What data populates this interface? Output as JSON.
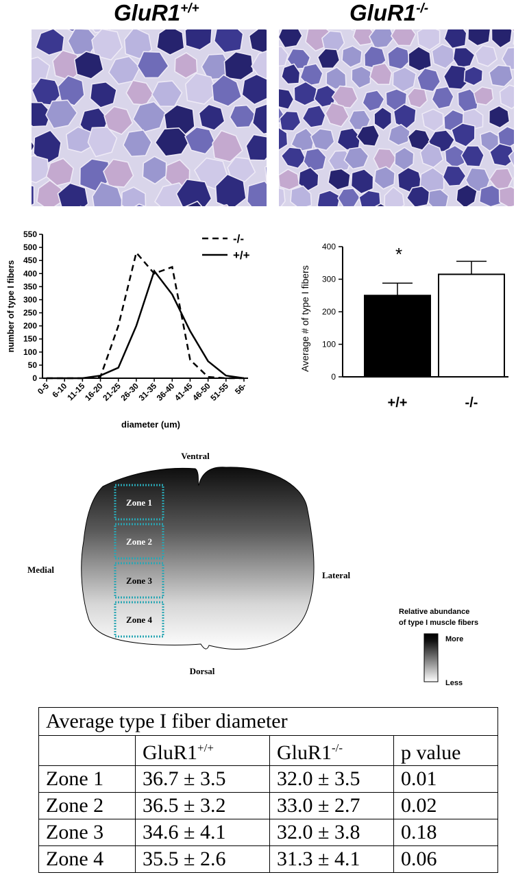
{
  "figure": {
    "panel_a": {
      "left_title": {
        "base": "GluR1",
        "sup": "+/+"
      },
      "right_title": {
        "base": "GluR1",
        "sup": "-/-"
      }
    },
    "line_chart": {
      "chart_data": {
        "type": "line",
        "categories": [
          "0-5",
          "6-10",
          "11-15",
          "16-20",
          "21-25",
          "26-30",
          "31-35",
          "36-40",
          "41-45",
          "46-50",
          "51-55",
          "56-"
        ],
        "series": [
          {
            "name": "-/-",
            "values": [
              0,
              0,
              0,
              5,
              200,
              480,
              400,
              425,
              70,
              5,
              0,
              0
            ]
          },
          {
            "name": "+/+",
            "values": [
              0,
              0,
              0,
              10,
              40,
              200,
              410,
              320,
              180,
              65,
              10,
              0
            ]
          }
        ],
        "xlabel": "diameter (um)",
        "ylabel": "number of type I fibers",
        "ylim": [
          0,
          550
        ],
        "yticks": [
          "0",
          "50",
          "100",
          "150",
          "200",
          "250",
          "300",
          "350",
          "400",
          "450",
          "500",
          "550"
        ],
        "legend_position": "top-right"
      }
    },
    "bar_chart": {
      "chart_data": {
        "type": "bar",
        "categories": [
          "+/+",
          "-/-"
        ],
        "values": [
          250,
          315
        ],
        "errors": [
          38,
          40
        ],
        "colors": [
          "#000000",
          "#ffffff"
        ],
        "ylabel": "Average # of type I fibers",
        "ylim": [
          0,
          400
        ],
        "yticks": [
          "0",
          "100",
          "200",
          "300",
          "400"
        ],
        "annotation": "*"
      }
    },
    "diagram": {
      "orientation": {
        "top": "Ventral",
        "bottom": "Dorsal",
        "left": "Medial",
        "right": "Lateral"
      },
      "zones": [
        "Zone 1",
        "Zone 2",
        "Zone 3",
        "Zone 4"
      ],
      "legend": {
        "title_line1": "Relative abundance",
        "title_line2": "of type I muscle fibers",
        "high": "More",
        "low": "Less"
      }
    },
    "table": {
      "caption": "Average type I fiber diameter",
      "headers": [
        {
          "base": "",
          "sup": ""
        },
        {
          "base": "GluR1",
          "sup": "+/+"
        },
        {
          "base": "GluR1",
          "sup": "-/-"
        },
        {
          "base": "p value",
          "sup": ""
        }
      ],
      "rows": [
        [
          "Zone 1",
          "36.7 ± 3.5",
          "32.0 ± 3.5",
          "0.01"
        ],
        [
          "Zone 2",
          "36.5 ± 3.2",
          "33.0 ± 2.7",
          "0.02"
        ],
        [
          "Zone 3",
          "34.6 ± 4.1",
          "32.0 ± 3.8",
          "0.18"
        ],
        [
          "Zone 4",
          "35.5 ± 2.6",
          "31.3 ± 4.1",
          "0.06"
        ]
      ]
    }
  }
}
